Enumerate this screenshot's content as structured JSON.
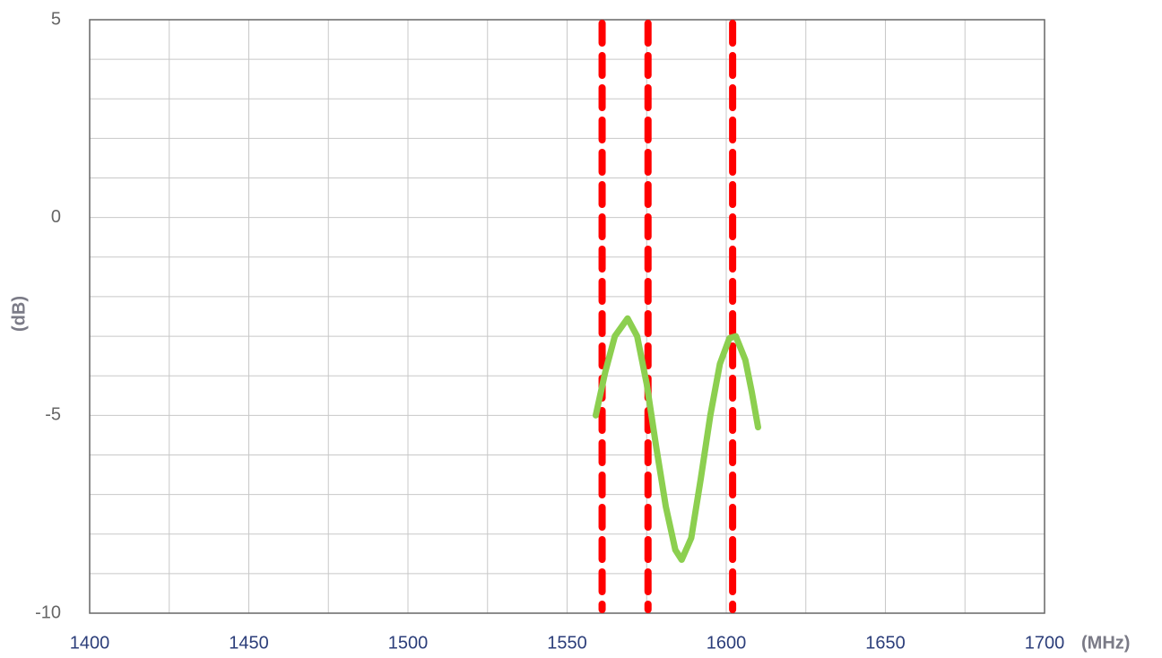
{
  "chart_data": {
    "type": "line",
    "x_label": "(MHz)",
    "y_label": "(dB)",
    "xlim": [
      1400,
      1700
    ],
    "ylim": [
      -10,
      5
    ],
    "xticks": [
      1400,
      1450,
      1500,
      1550,
      1600,
      1650,
      1700
    ],
    "yticks": [
      -10,
      -5,
      0,
      5
    ],
    "x_minor_grid": [
      1425,
      1475,
      1525,
      1575,
      1625,
      1675
    ],
    "y_minor_grid": [
      -9,
      -8,
      -7,
      -6,
      -4,
      -3,
      -2,
      -1,
      1,
      2,
      3,
      4
    ],
    "grid": true,
    "series": [
      {
        "color": "#8ccf4f",
        "x": [
          1559,
          1562,
          1565,
          1569,
          1572,
          1575,
          1578,
          1581,
          1584,
          1586,
          1589,
          1592,
          1595,
          1598,
          1601,
          1603,
          1606,
          1608,
          1610
        ],
        "values": [
          -5.0,
          -3.9,
          -3.0,
          -2.55,
          -3.0,
          -4.2,
          -5.8,
          -7.3,
          -8.4,
          -8.65,
          -8.1,
          -6.6,
          -5.0,
          -3.7,
          -3.05,
          -3.0,
          -3.6,
          -4.4,
          -5.3
        ]
      }
    ],
    "vlines": {
      "color": "#ff0000",
      "values": [
        1561,
        1575.42,
        1602
      ]
    }
  }
}
